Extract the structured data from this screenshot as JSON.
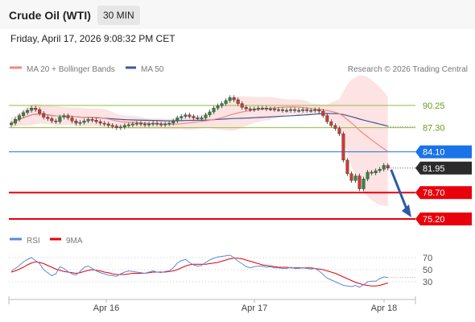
{
  "header": {
    "instrument": "Crude Oil (WTI)",
    "timeframe": "30 MIN"
  },
  "datetime": "Friday, April 17, 2026 9:08:32 PM CET",
  "legend": {
    "ma20": "MA 20 + Bollinger Bands",
    "ma50": "MA 50",
    "credit": "Research © 2026 Trading Central"
  },
  "rsi_legend": {
    "rsi": "RSI",
    "ma": "9MA"
  },
  "colors": {
    "ma20": "#f08a84",
    "ma50": "#3b5998",
    "band": "#fde3e3",
    "support": "#e8000b",
    "resistance": "#8fbf3f",
    "current": "#2b2b2b",
    "pivot": "#1a73e8",
    "rsi": "#5b8ad8",
    "rsi_ma": "#e8000b",
    "arrow": "#2e5aa8"
  },
  "chart_data": {
    "type": "candlestick",
    "instrument": "Crude Oil (WTI)",
    "timeframe": "30 MIN",
    "x_ticks": [
      "Apr 16",
      "Apr 17",
      "Apr 18"
    ],
    "levels": [
      {
        "value": 90.25,
        "label": "90.25",
        "kind": "resistance"
      },
      {
        "value": 87.3,
        "label": "87.30",
        "kind": "resistance"
      },
      {
        "value": 84.1,
        "label": "84.10",
        "kind": "pivot"
      },
      {
        "value": 81.95,
        "label": "81.95",
        "kind": "current"
      },
      {
        "value": 78.7,
        "label": "78.70",
        "kind": "support"
      },
      {
        "value": 75.2,
        "label": "75.20",
        "kind": "support"
      }
    ],
    "closes": [
      87.9,
      88.4,
      88.9,
      89.3,
      89.6,
      89.9,
      89.7,
      89.2,
      88.7,
      88.5,
      88.2,
      88.1,
      88.7,
      88.9,
      88.6,
      88.2,
      87.9,
      88.0,
      88.2,
      88.4,
      88.3,
      88.1,
      87.9,
      87.8,
      87.6,
      87.5,
      87.3,
      87.4,
      87.6,
      87.7,
      87.8,
      87.9,
      87.8,
      87.7,
      87.8,
      87.9,
      87.8,
      87.7,
      87.8,
      87.9,
      88.2,
      88.6,
      88.8,
      89.0,
      88.8,
      88.6,
      88.6,
      88.6,
      89.0,
      89.4,
      89.9,
      90.2,
      90.5,
      90.9,
      91.3,
      91.0,
      90.5,
      90.0,
      89.8,
      89.7,
      89.8,
      89.9,
      89.9,
      89.8,
      89.8,
      89.7,
      89.7,
      89.6,
      89.6,
      89.7,
      89.6,
      89.6,
      89.7,
      89.6,
      89.6,
      89.7,
      89.5,
      88.9,
      88.1,
      87.6,
      87.2,
      86.5,
      83.0,
      81.2,
      80.3,
      80.9,
      79.2,
      80.5,
      81.4,
      81.3,
      81.6,
      81.8,
      82.3,
      81.95
    ],
    "rsi": {
      "ticks": [
        70,
        50,
        30
      ],
      "values": [
        48,
        52,
        57,
        63,
        67,
        70,
        65,
        60,
        50,
        45,
        40,
        43,
        55,
        52,
        47,
        43,
        41,
        47,
        54,
        56,
        52,
        48,
        45,
        43,
        41,
        40,
        39,
        43,
        46,
        48,
        47,
        46,
        45,
        44,
        46,
        48,
        46,
        45,
        47,
        48,
        53,
        61,
        65,
        67,
        62,
        58,
        56,
        57,
        62,
        66,
        69,
        71,
        72,
        73,
        74,
        70,
        64,
        60,
        55,
        53,
        55,
        56,
        56,
        54,
        55,
        53,
        53,
        52,
        52,
        54,
        52,
        52,
        53,
        52,
        51,
        52,
        48,
        42,
        36,
        33,
        30,
        27,
        24,
        23,
        22,
        24,
        21,
        25,
        30,
        31,
        31,
        35,
        38,
        37
      ],
      "ma": [
        46,
        48,
        51,
        54,
        58,
        61,
        63,
        62,
        60,
        57,
        54,
        51,
        49,
        47,
        46,
        45,
        44,
        45,
        47,
        49,
        50,
        49,
        48,
        46,
        45,
        43,
        42,
        42,
        42,
        43,
        44,
        44,
        44,
        44,
        45,
        46,
        46,
        46,
        46,
        47,
        48,
        50,
        53,
        56,
        58,
        59,
        59,
        59,
        59,
        60,
        61,
        62,
        64,
        66,
        68,
        69,
        69,
        68,
        66,
        64,
        62,
        60,
        58,
        57,
        56,
        55,
        54,
        54,
        54,
        53,
        53,
        53,
        53,
        53,
        53,
        52,
        51,
        50,
        48,
        46,
        44,
        41,
        38,
        35,
        32,
        29,
        27,
        25,
        24,
        23,
        23,
        24,
        26,
        28
      ]
    }
  }
}
